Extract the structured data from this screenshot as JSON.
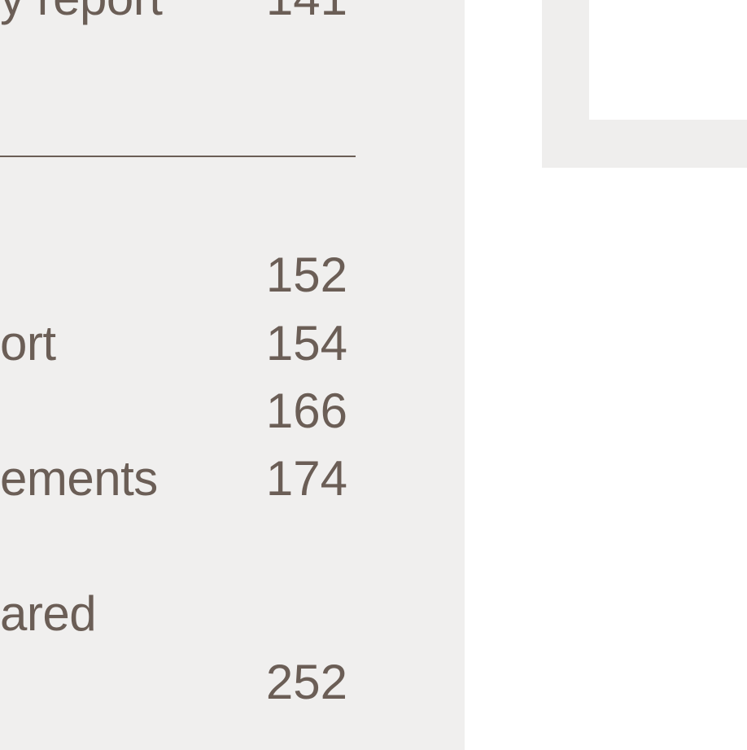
{
  "toc": {
    "top_entry": {
      "label": "y report",
      "page": "141"
    },
    "entries": [
      {
        "label": "",
        "page": "152"
      },
      {
        "label": "ort",
        "page": "154"
      },
      {
        "label": "",
        "page": "166"
      },
      {
        "label": "ements",
        "page": "174"
      },
      {
        "label": "ared",
        "page": ""
      },
      {
        "label": "",
        "page": "252"
      }
    ]
  },
  "colors": {
    "panel": "#f0efee",
    "text": "#6b5e56",
    "decoration": "#efeeed"
  }
}
